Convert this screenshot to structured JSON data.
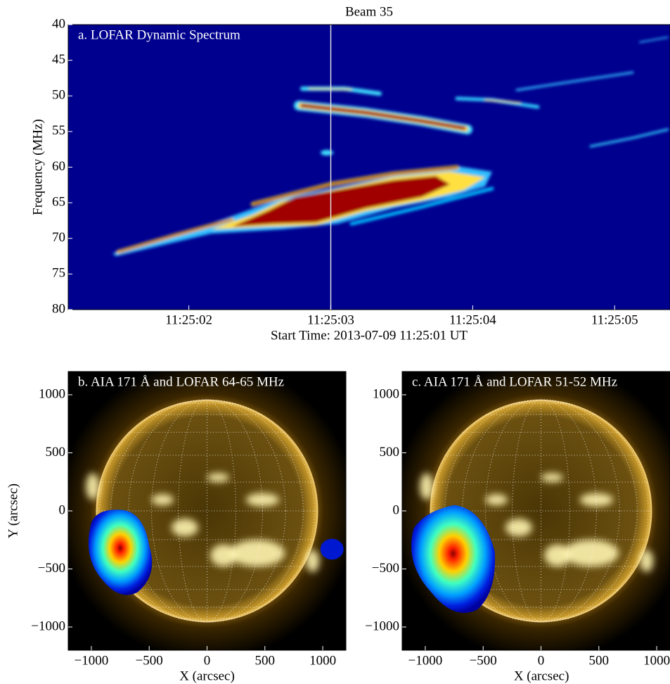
{
  "chart_data": [
    {
      "type": "spectrogram",
      "title": "Beam 35",
      "annotation": "a. LOFAR Dynamic Spectrum",
      "ylabel": "Frequency (MHz)",
      "xlabel": "Start Time: 2013-07-09 11:25:01 UT",
      "xlim": [
        0.15,
        4.39
      ],
      "xticks": [
        {
          "value": 1,
          "label": "11:25:02"
        },
        {
          "value": 2,
          "label": "11:25:03"
        },
        {
          "value": 3,
          "label": "11:25:04"
        },
        {
          "value": 4,
          "label": "11:25:05"
        }
      ],
      "ylim": [
        80,
        40
      ],
      "yticks": [
        40,
        45,
        50,
        55,
        60,
        65,
        70,
        75,
        80
      ],
      "cursor": 2
    },
    {
      "type": "image",
      "annotation": "b. AIA 171 Å and LOFAR 64-65 MHz",
      "xlabel": "X (arcsec)",
      "ylabel": "Y (arcsec)",
      "xlim": [
        -1200,
        1200
      ],
      "ylim": [
        -1200,
        1200
      ],
      "xticks": [
        {
          "value": -1000,
          "label": "−1000"
        },
        {
          "value": -500,
          "label": "−500"
        },
        0,
        500,
        1000
      ],
      "yticks": [
        1000,
        500,
        0,
        {
          "value": -500,
          "label": "−500"
        },
        {
          "value": -1000,
          "label": "−1000"
        }
      ]
    },
    {
      "type": "image",
      "annotation": "c. AIA 171 Å and LOFAR 51-52 MHz",
      "xlabel": "X (arcsec)",
      "xlim": [
        -1200,
        1115
      ],
      "ylim": [
        -1200,
        1200
      ],
      "xticks": [
        {
          "value": -1000,
          "label": "−1000"
        },
        {
          "value": -500,
          "label": "−500"
        },
        0,
        500,
        1000
      ],
      "yticks": [
        1000,
        500,
        0,
        {
          "value": -500,
          "label": "−500"
        },
        {
          "value": -1000,
          "label": "−1000"
        }
      ]
    }
  ]
}
